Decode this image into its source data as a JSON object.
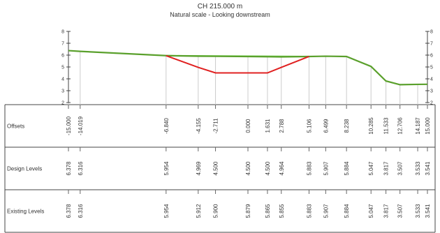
{
  "title": "CH 215.000 m",
  "subtitle": "Natural scale - Looking downstream",
  "colors": {
    "existing": "#5aa02c",
    "design_raised": "#6fd24a",
    "design_cut": "#e02020",
    "grid": "#cccccc"
  },
  "row_labels": [
    "Offsets",
    "Design Levels",
    "Existing Levels"
  ],
  "axis_ticks": [
    "8",
    "7",
    "6",
    "5",
    "4",
    "3",
    "2"
  ],
  "chart_data": {
    "type": "line",
    "title": "CH 215.000 m",
    "subtitle": "Natural scale - Looking downstream",
    "ylim": [
      2,
      8
    ],
    "offsets": [
      "-15.000",
      "-14.019",
      "-6.840",
      "-4.155",
      "-2.711",
      "0.000",
      "1.631",
      "2.788",
      "5.106",
      "6.499",
      "8.238",
      "10.285",
      "11.533",
      "12.706",
      "14.187",
      "15.000"
    ],
    "design_levels": [
      "6.378",
      "6.316",
      "5.954",
      "4.969",
      "4.500",
      "4.500",
      "4.500",
      "4.964",
      "5.883",
      "5.907",
      "5.884",
      "5.047",
      "3.817",
      "3.507",
      "3.533",
      "3.541"
    ],
    "existing_levels": [
      "6.378",
      "6.316",
      "5.954",
      "5.912",
      "5.900",
      "5.879",
      "5.865",
      "5.855",
      "5.883",
      "5.907",
      "5.884",
      "5.047",
      "3.817",
      "3.507",
      "3.533",
      "3.541"
    ],
    "series": [
      {
        "name": "",
        "role": "existing",
        "x": [
          -15.0,
          -14.019,
          -6.84,
          -4.155,
          -2.711,
          0.0,
          1.631,
          2.788,
          5.106,
          6.499,
          8.238,
          10.285,
          11.533,
          12.706,
          14.187,
          15.0
        ],
        "y": [
          6.378,
          6.316,
          5.954,
          5.912,
          5.9,
          5.879,
          5.865,
          5.855,
          5.883,
          5.907,
          5.884,
          5.047,
          3.817,
          3.507,
          3.533,
          3.541
        ]
      },
      {
        "name": "",
        "role": "design",
        "x": [
          -6.84,
          -4.155,
          -2.711,
          0.0,
          1.631,
          2.788,
          5.106
        ],
        "y": [
          5.954,
          4.969,
          4.5,
          4.5,
          4.5,
          4.964,
          5.883
        ]
      }
    ]
  }
}
